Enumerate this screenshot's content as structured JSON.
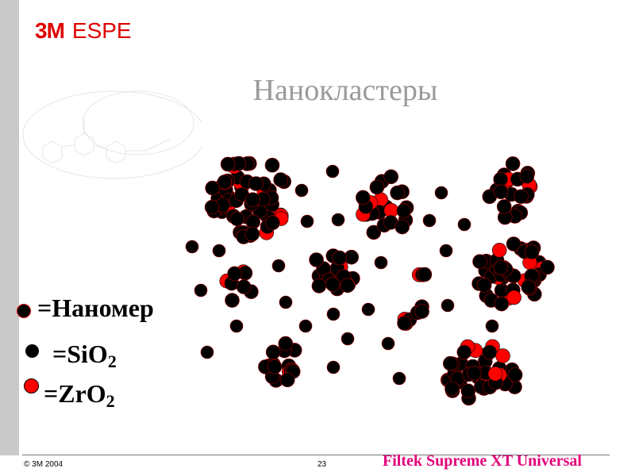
{
  "logo": {
    "mark": "3M",
    "brand": "ESPE"
  },
  "title": "Нанокластеры",
  "legend": {
    "nanomer": "=Наномер",
    "sio2_prefix": "=SiO",
    "sio2_sub": "2",
    "zro2_prefix": "=ZrO",
    "zro2_sub": "2"
  },
  "footer": {
    "copyright": "© 3M 2004",
    "page": "23",
    "product": "Filtek Supreme XT Universal"
  },
  "colors": {
    "accent": "#e00000",
    "sio2": "#000000",
    "zro2": "#ff0000",
    "product": "#e2007a",
    "title": "#9a9a9a"
  }
}
